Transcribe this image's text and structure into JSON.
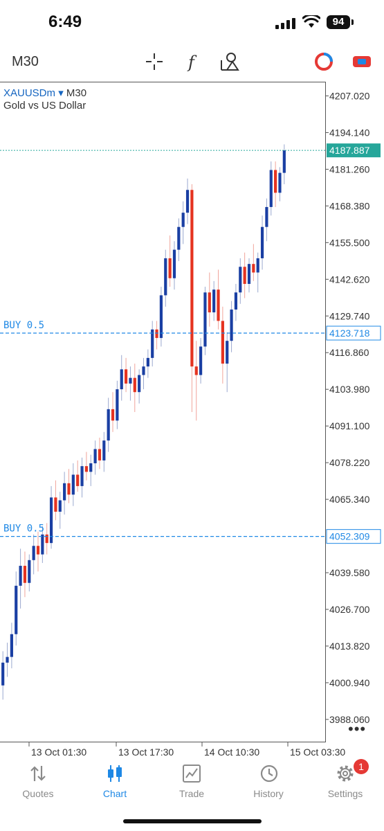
{
  "status": {
    "time": "6:49",
    "battery": "94"
  },
  "toolbar": {
    "timeframe": "M30"
  },
  "chart": {
    "symbol": "XAUUSDm",
    "dropdown": "▾",
    "timeframe": "M30",
    "description": "Gold vs US Dollar"
  },
  "tabs": [
    {
      "label": "Quotes"
    },
    {
      "label": "Chart"
    },
    {
      "label": "Trade"
    },
    {
      "label": "History"
    },
    {
      "label": "Settings",
      "badge": "1"
    }
  ],
  "chart_data": {
    "type": "candlestick",
    "symbol": "XAUUSDm",
    "timeframe": "M30",
    "ylim": [
      3980.0,
      4212.0
    ],
    "yticks": [
      "4207.020",
      "4194.140",
      "4181.260",
      "4168.380",
      "4155.500",
      "4142.620",
      "4129.740",
      "4116.860",
      "4103.980",
      "4091.100",
      "4078.220",
      "4065.340",
      "4052.309",
      "4039.580",
      "4026.700",
      "4013.820",
      "4000.940",
      "3988.060"
    ],
    "xticks": [
      "13 Oct 01:30",
      "13 Oct 17:30",
      "14 Oct 10:30",
      "15 Oct 03:30"
    ],
    "current_price": {
      "label": "4187.887",
      "value": 4187.887,
      "color": "#26a69a"
    },
    "order_lines": [
      {
        "label": "BUY 0.5",
        "price_label": "4123.718",
        "value": 4123.718,
        "color": "#1e88e5"
      },
      {
        "label": "BUY 0.5",
        "price_label": "4052.309",
        "value": 4052.309,
        "color": "#1e88e5"
      }
    ],
    "candles": [
      [
        4000,
        4012,
        3995,
        4008
      ],
      [
        4008,
        4015,
        4003,
        4010
      ],
      [
        4010,
        4022,
        4006,
        4018
      ],
      [
        4018,
        4040,
        4014,
        4035
      ],
      [
        4035,
        4048,
        4027,
        4042
      ],
      [
        4042,
        4047,
        4031,
        4036
      ],
      [
        4036,
        4046,
        4033,
        4044
      ],
      [
        4044,
        4053,
        4039,
        4049
      ],
      [
        4049,
        4054,
        4040,
        4046
      ],
      [
        4046,
        4056,
        4043,
        4053
      ],
      [
        4053,
        4057,
        4046,
        4050
      ],
      [
        4050,
        4070,
        4048,
        4066
      ],
      [
        4066,
        4072,
        4058,
        4061
      ],
      [
        4061,
        4068,
        4055,
        4065
      ],
      [
        4065,
        4075,
        4060,
        4071
      ],
      [
        4071,
        4076,
        4064,
        4067
      ],
      [
        4067,
        4078,
        4063,
        4074
      ],
      [
        4074,
        4079,
        4068,
        4070
      ],
      [
        4070,
        4080,
        4066,
        4077
      ],
      [
        4077,
        4082,
        4072,
        4075
      ],
      [
        4075,
        4081,
        4070,
        4078
      ],
      [
        4078,
        4086,
        4074,
        4083
      ],
      [
        4083,
        4087,
        4076,
        4079
      ],
      [
        4079,
        4089,
        4075,
        4086
      ],
      [
        4086,
        4101,
        4082,
        4097
      ],
      [
        4097,
        4103,
        4089,
        4093
      ],
      [
        4093,
        4107,
        4090,
        4104
      ],
      [
        4104,
        4116,
        4100,
        4111
      ],
      [
        4111,
        4115,
        4103,
        4106
      ],
      [
        4106,
        4112,
        4100,
        4108
      ],
      [
        4108,
        4113,
        4096,
        4103
      ],
      [
        4103,
        4111,
        4099,
        4109
      ],
      [
        4109,
        4115,
        4104,
        4112
      ],
      [
        4112,
        4118,
        4108,
        4115
      ],
      [
        4115,
        4128,
        4112,
        4125
      ],
      [
        4125,
        4128,
        4118,
        4122
      ],
      [
        4122,
        4140,
        4119,
        4137
      ],
      [
        4137,
        4153,
        4133,
        4150
      ],
      [
        4150,
        4158,
        4140,
        4143
      ],
      [
        4143,
        4156,
        4139,
        4153
      ],
      [
        4153,
        4164,
        4149,
        4161
      ],
      [
        4161,
        4170,
        4155,
        4166
      ],
      [
        4166,
        4178,
        4162,
        4174
      ],
      [
        4174,
        4176,
        4096,
        4112
      ],
      [
        4112,
        4121,
        4093,
        4109
      ],
      [
        4109,
        4122,
        4106,
        4119
      ],
      [
        4119,
        4140,
        4116,
        4138
      ],
      [
        4138,
        4145,
        4126,
        4131
      ],
      [
        4131,
        4142,
        4128,
        4139
      ],
      [
        4139,
        4146,
        4125,
        4128
      ],
      [
        4128,
        4133,
        4106,
        4113
      ],
      [
        4113,
        4124,
        4103,
        4121
      ],
      [
        4121,
        4135,
        4117,
        4132
      ],
      [
        4132,
        4141,
        4128,
        4138
      ],
      [
        4138,
        4150,
        4134,
        4147
      ],
      [
        4147,
        4152,
        4136,
        4141
      ],
      [
        4141,
        4150,
        4138,
        4148
      ],
      [
        4148,
        4155,
        4142,
        4145
      ],
      [
        4145,
        4152,
        4138,
        4150
      ],
      [
        4150,
        4165,
        4146,
        4161
      ],
      [
        4161,
        4171,
        4156,
        4168
      ],
      [
        4168,
        4184,
        4165,
        4181
      ],
      [
        4181,
        4184,
        4168,
        4173
      ],
      [
        4173,
        4182,
        4170,
        4180
      ],
      [
        4180,
        4190,
        4176,
        4187.887
      ]
    ]
  }
}
